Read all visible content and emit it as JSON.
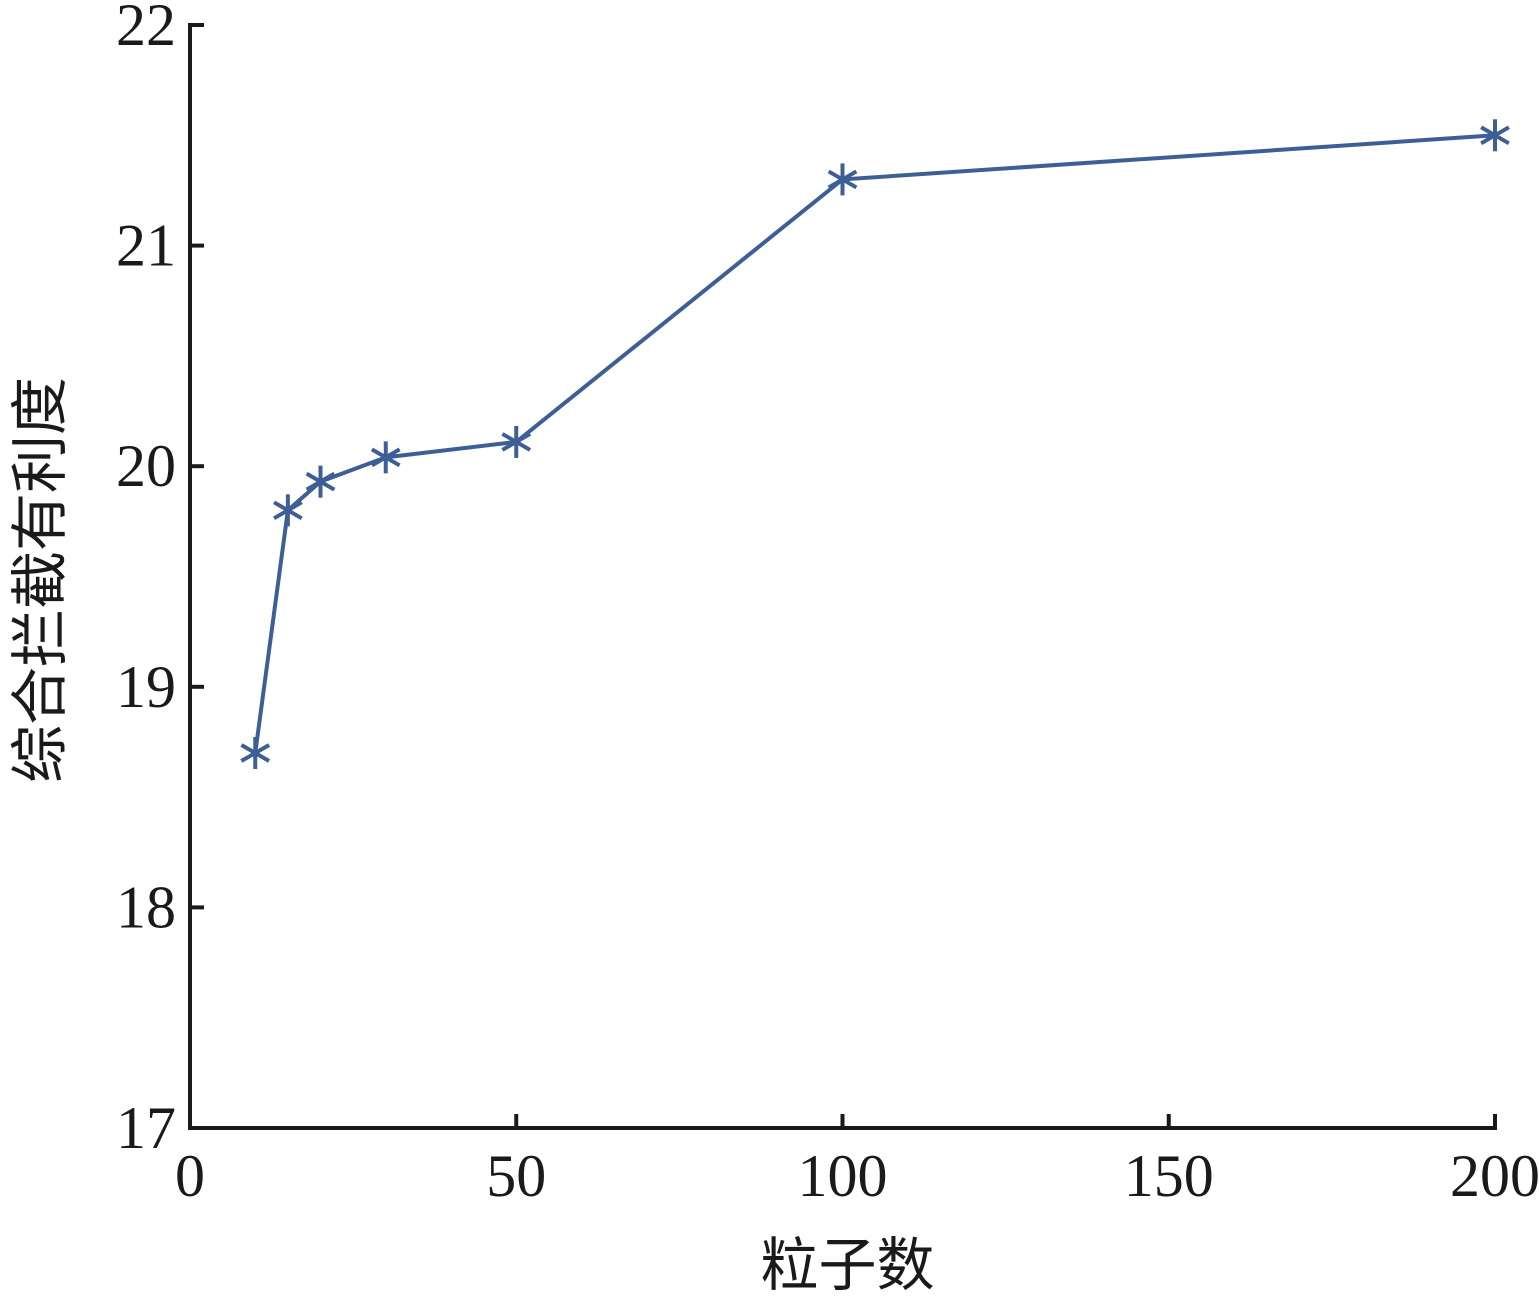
{
  "chart_data": {
    "type": "line",
    "title": "",
    "xlabel": "粒子数",
    "ylabel": "综合拦截有利度",
    "xlim": [
      0,
      200
    ],
    "ylim": [
      17,
      22
    ],
    "xticks": [
      0,
      50,
      100,
      150,
      200
    ],
    "yticks": [
      17,
      18,
      19,
      20,
      21,
      22
    ],
    "grid": false,
    "marker": "asterisk",
    "color": "#3d5f95",
    "series": [
      {
        "x": [
          10,
          15,
          20,
          30,
          50,
          100,
          200
        ],
        "y": [
          18.7,
          19.8,
          19.93,
          20.04,
          20.11,
          21.3,
          21.5
        ]
      }
    ]
  }
}
